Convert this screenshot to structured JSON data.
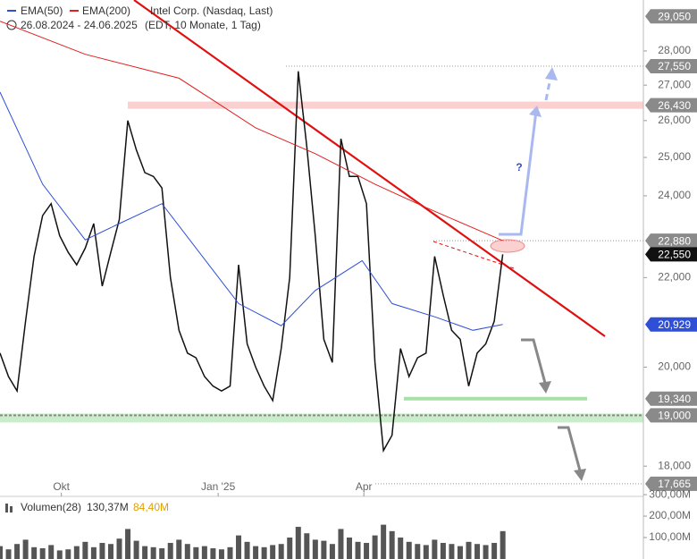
{
  "chart_data": [
    {
      "type": "line",
      "title": "Intel Corp. (Nasdaq, Last)",
      "subtitle": "26.08.2024 - 24.06.2025",
      "note": "(EDT, 10 Monate, 1 Tag)",
      "log_scale": true,
      "ylim": [
        17430,
        29560
      ],
      "xlim": [
        0,
        75.5
      ],
      "yticks": [
        {
          "value": 18000,
          "label": "18,000"
        },
        {
          "value": 20000,
          "label": "20,000"
        },
        {
          "value": 22000,
          "label": "22,000"
        },
        {
          "value": 24000,
          "label": "24,000"
        },
        {
          "value": 25000,
          "label": "25,000"
        },
        {
          "value": 26000,
          "label": "26,000"
        },
        {
          "value": 27000,
          "label": "27,000"
        },
        {
          "value": 28000,
          "label": "28,000"
        }
      ],
      "xticks": [
        {
          "value": 7.2,
          "label": "Okt"
        },
        {
          "value": 25.6,
          "label": "Jan '25"
        },
        {
          "value": 42.7,
          "label": "Apr"
        }
      ],
      "series": [
        {
          "name": "Intel Corp.",
          "color": "#111111",
          "x": [
            0,
            1,
            2,
            3,
            4,
            5,
            6,
            7,
            8,
            9,
            10,
            11,
            12,
            13,
            14,
            15,
            16,
            17,
            18,
            19,
            20,
            21,
            22,
            23,
            24,
            25,
            26,
            27,
            28,
            29,
            30,
            31,
            32,
            33,
            34,
            35,
            36,
            37,
            38,
            39,
            40,
            41,
            42,
            43,
            44,
            45,
            46,
            47,
            48,
            49,
            50,
            51,
            52,
            53,
            54,
            55,
            56,
            57,
            58,
            59
          ],
          "values": [
            20300,
            19800,
            19500,
            21000,
            22500,
            23500,
            23800,
            23000,
            22600,
            22300,
            22700,
            23300,
            21800,
            22600,
            23400,
            26000,
            25200,
            24600,
            24500,
            24200,
            22000,
            20800,
            20300,
            20200,
            19800,
            19600,
            19500,
            19600,
            22300,
            20500,
            20000,
            19600,
            19300,
            20400,
            22000,
            27400,
            25300,
            23000,
            20600,
            20100,
            25500,
            24500,
            24500,
            23800,
            20100,
            18300,
            18600,
            20400,
            19800,
            20200,
            20300,
            22500,
            21600,
            20800,
            20600,
            19600,
            20300,
            20500,
            21000,
            22550
          ]
        },
        {
          "name": "EMA(50)",
          "color": "#2e4fd6",
          "x": [
            0,
            5,
            10,
            14,
            19,
            28,
            33,
            37,
            42.5,
            46,
            51,
            55.5,
            59
          ],
          "values": [
            26800,
            24300,
            22900,
            23300,
            23800,
            21400,
            20900,
            21700,
            22400,
            21400,
            21100,
            20800,
            20929
          ]
        },
        {
          "name": "EMA(200)",
          "color": "#e02020",
          "x": [
            0,
            10,
            21,
            30,
            37,
            44,
            50,
            59
          ],
          "values": [
            28900,
            27900,
            27200,
            25800,
            25100,
            24300,
            23700,
            22880
          ]
        }
      ],
      "levels": [
        {
          "value": 29050,
          "label": "29,050",
          "color": "#8a8a8a"
        },
        {
          "value": 27550,
          "label": "27,550",
          "color": "#8a8a8a"
        },
        {
          "value": 26430,
          "label": "26,430",
          "color": "#8a8a8a"
        },
        {
          "value": 22880,
          "label": "22,880",
          "color": "#8a8a8a"
        },
        {
          "value": 22550,
          "label": "22,550",
          "color": "#111111"
        },
        {
          "value": 20929,
          "label": "20,929",
          "color": "#2e4fd6"
        },
        {
          "value": 19340,
          "label": "19,340",
          "color": "#8a8a8a"
        },
        {
          "value": 19000,
          "label": "19,000",
          "color": "#8a8a8a"
        },
        {
          "value": 17665,
          "label": "17,665",
          "color": "#8a8a8a"
        }
      ],
      "annotations": [
        "?"
      ]
    },
    {
      "type": "bar",
      "title": "Volumen(28)",
      "current_label": "130,37M",
      "average_label": "84,40M",
      "color": "#555555",
      "ylim": [
        0,
        292
      ],
      "yticks": [
        {
          "value": 100,
          "label": "100,00M"
        },
        {
          "value": 200,
          "label": "200,00M"
        },
        {
          "value": 300,
          "label": "300,00M"
        }
      ],
      "values": [
        60,
        45,
        70,
        90,
        55,
        50,
        65,
        40,
        45,
        60,
        80,
        55,
        75,
        70,
        95,
        140,
        85,
        60,
        55,
        50,
        75,
        90,
        70,
        55,
        60,
        50,
        45,
        55,
        110,
        80,
        60,
        55,
        65,
        70,
        100,
        150,
        120,
        90,
        85,
        70,
        140,
        100,
        80,
        75,
        110,
        160,
        130,
        100,
        80,
        70,
        65,
        90,
        75,
        70,
        60,
        80,
        70,
        65,
        75,
        130
      ]
    }
  ]
}
